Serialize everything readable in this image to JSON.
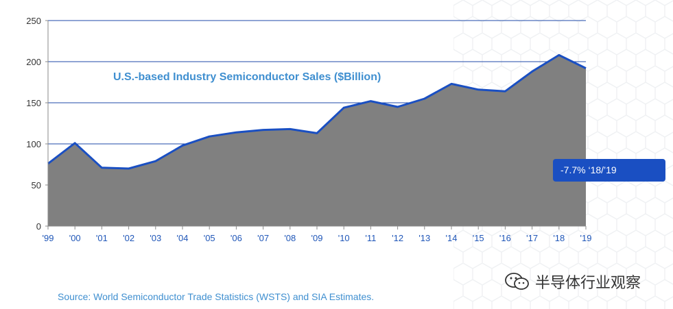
{
  "chart_data": {
    "type": "area",
    "title": "U.S.-based Industry Semiconductor Sales ($Billion)",
    "categories": [
      "'99",
      "'00",
      "'01",
      "'02",
      "'03",
      "'04",
      "'05",
      "'06",
      "'07",
      "'08",
      "'09",
      "'10",
      "'11",
      "'12",
      "'13",
      "'14",
      "'15",
      "'16",
      "'17",
      "'18",
      "'19"
    ],
    "values": [
      76,
      101,
      71,
      70,
      79,
      98,
      109,
      114,
      117,
      118,
      113,
      144,
      152,
      145,
      155,
      173,
      166,
      164,
      188,
      208,
      192
    ],
    "ylim": [
      0,
      250
    ],
    "yticks": [
      0,
      50,
      100,
      150,
      200,
      250
    ],
    "xlabel": "",
    "ylabel": "",
    "grid": true,
    "fill_color": "#808080",
    "line_color": "#1a4fc2",
    "title_color": "#3f8fd0"
  },
  "callout": {
    "text": "-7.7% ‘18/’19"
  },
  "source": {
    "text": "Source: World Semiconductor Trade Statistics (WSTS) and SIA Estimates."
  },
  "watermark": {
    "text": "半导体行业观察",
    "icon": "wechat-icon"
  }
}
